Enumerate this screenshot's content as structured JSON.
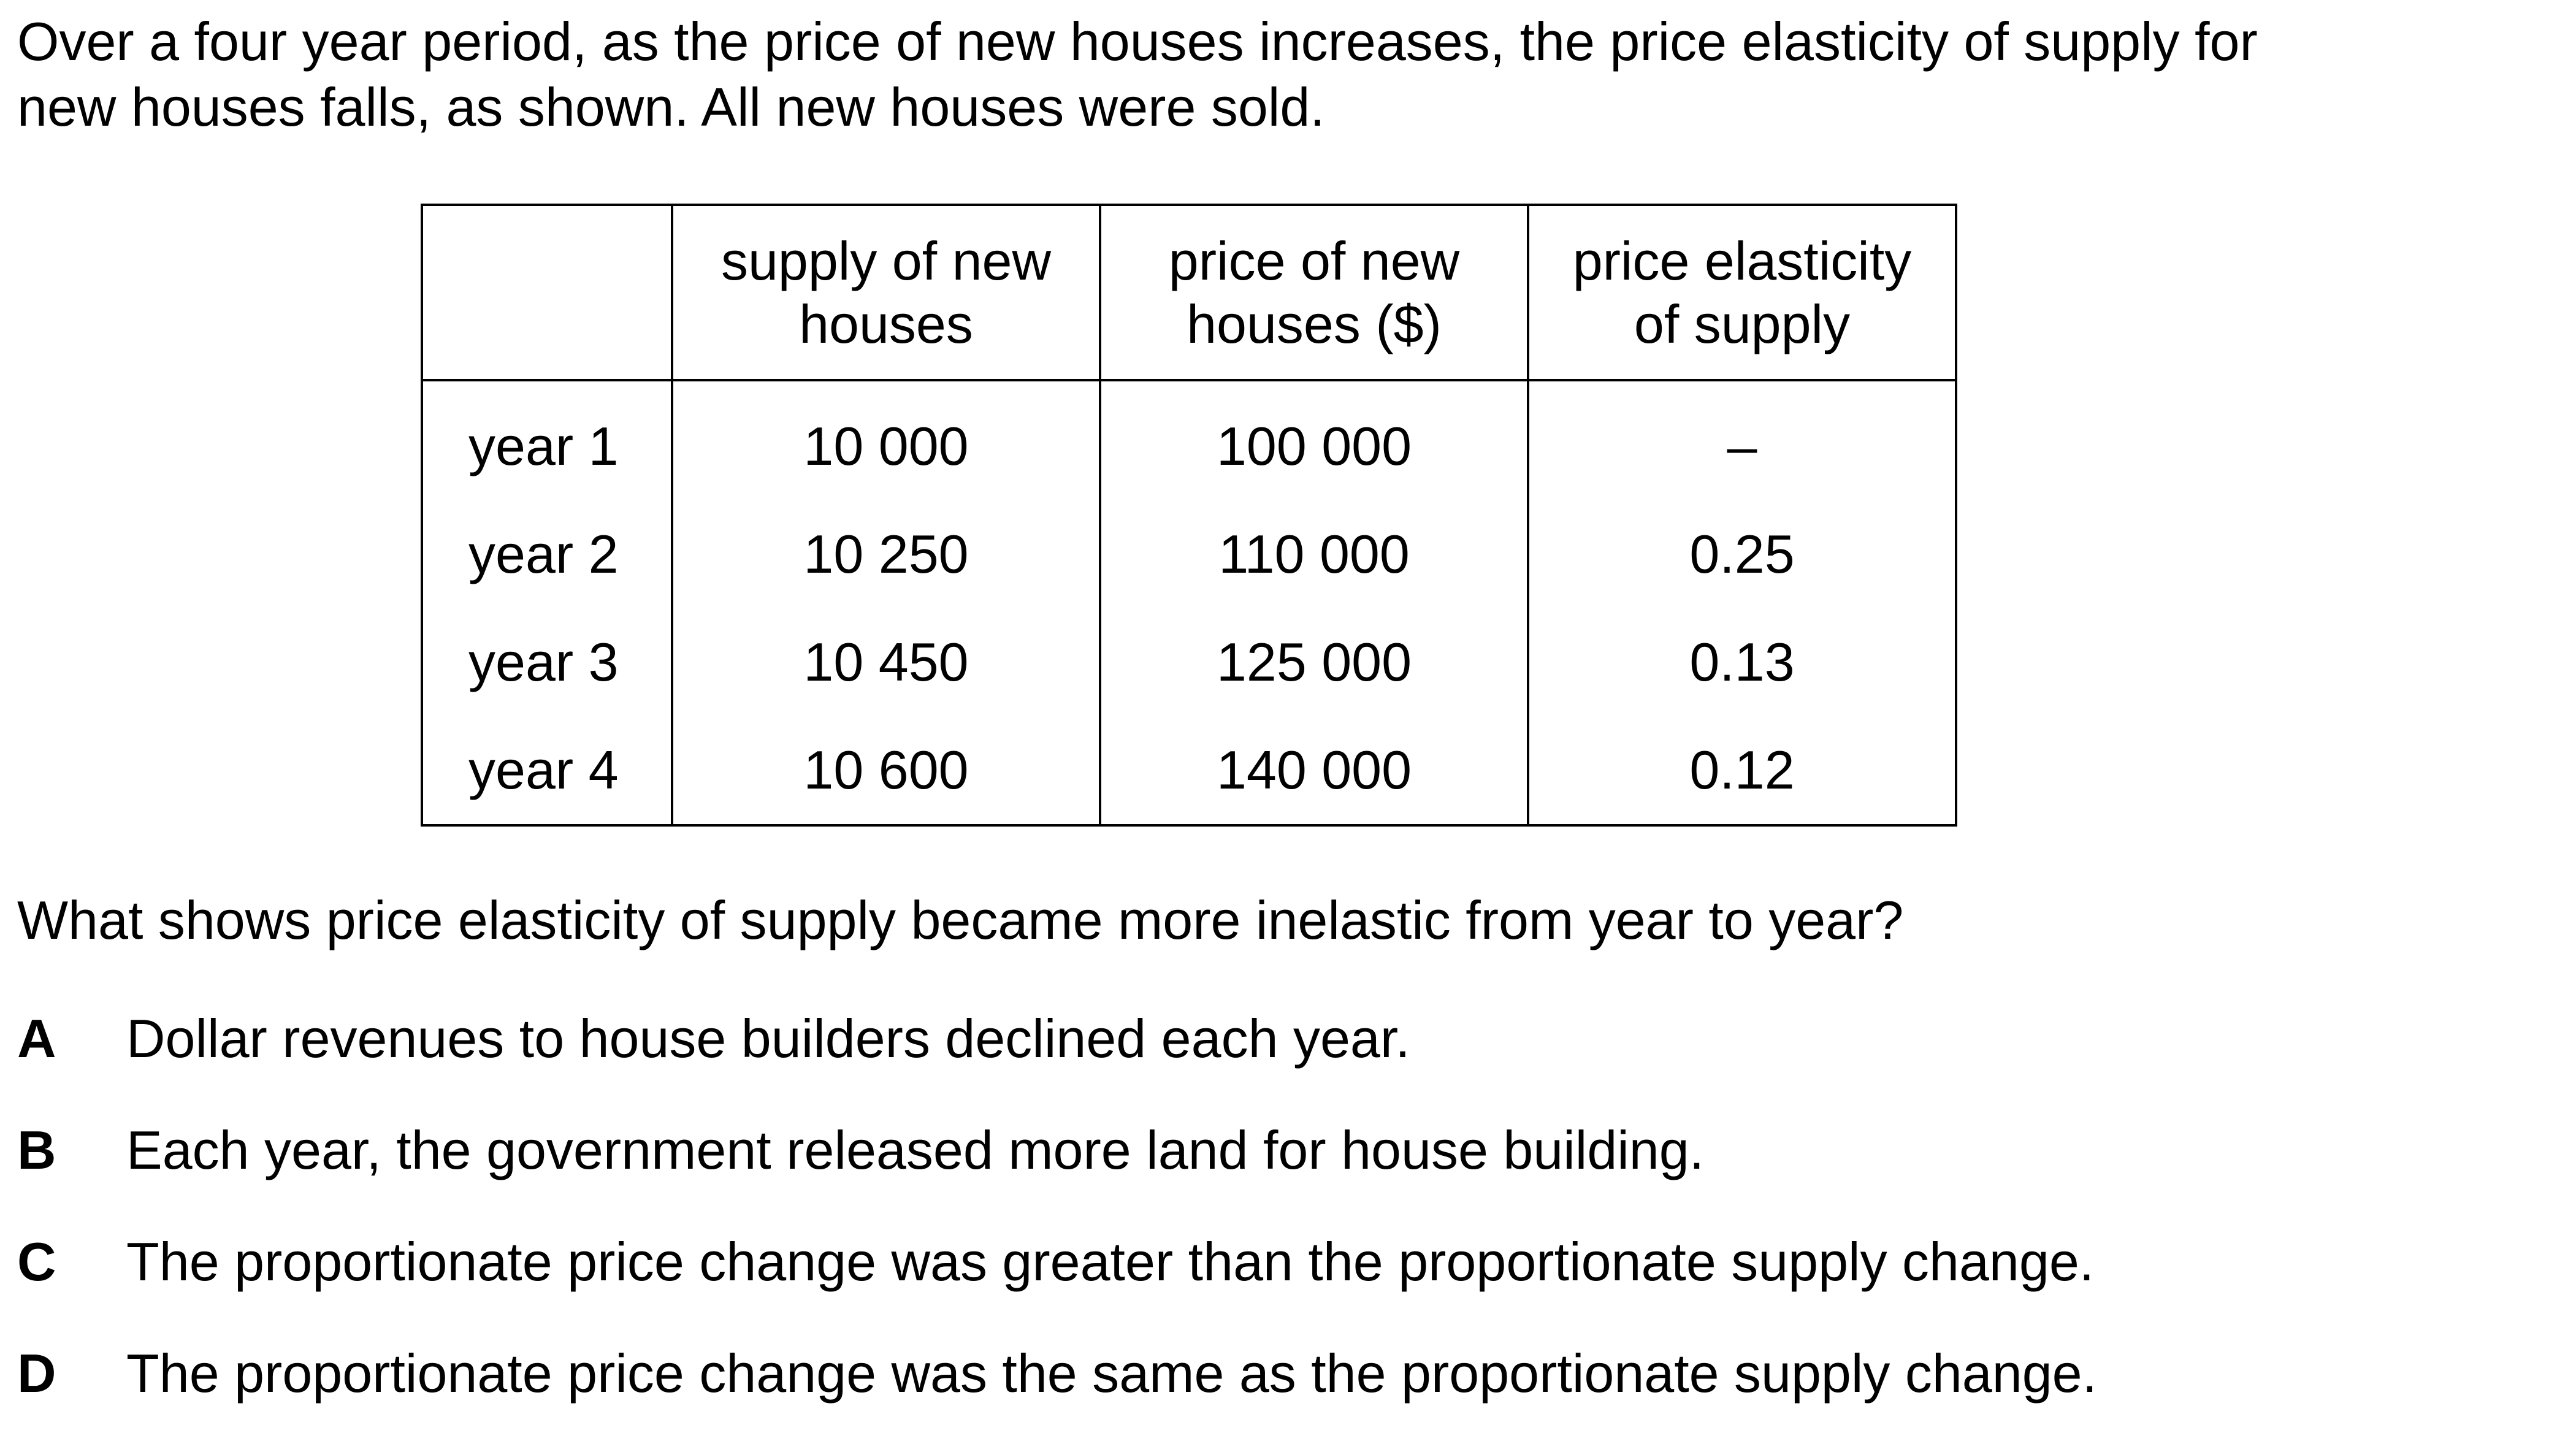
{
  "intro": {
    "line1": "Over a four year period, as the price of new houses increases, the price elasticity of supply for",
    "line2": "new houses falls, as shown. All new houses were sold."
  },
  "table": {
    "headers": {
      "blank": "",
      "supply": [
        "supply of new",
        "houses"
      ],
      "price": [
        "price of new",
        "houses ($)"
      ],
      "pes": [
        "price elasticity",
        "of supply"
      ]
    },
    "rows": [
      {
        "year": "year 1",
        "supply": "10 000",
        "price": "100 000",
        "pes": "–"
      },
      {
        "year": "year 2",
        "supply": "10 250",
        "price": "110 000",
        "pes": "0.25"
      },
      {
        "year": "year 3",
        "supply": "10 450",
        "price": "125 000",
        "pes": "0.13"
      },
      {
        "year": "year 4",
        "supply": "10 600",
        "price": "140 000",
        "pes": "0.12"
      }
    ]
  },
  "question": "What shows price elasticity of supply became more inelastic from year to year?",
  "options": [
    {
      "letter": "A",
      "text": "Dollar revenues to house builders declined each year."
    },
    {
      "letter": "B",
      "text": "Each year, the government released more land for house building."
    },
    {
      "letter": "C",
      "text": "The proportionate price change was greater than the proportionate supply change."
    },
    {
      "letter": "D",
      "text": "The proportionate price change was the same as the proportionate supply change."
    }
  ]
}
